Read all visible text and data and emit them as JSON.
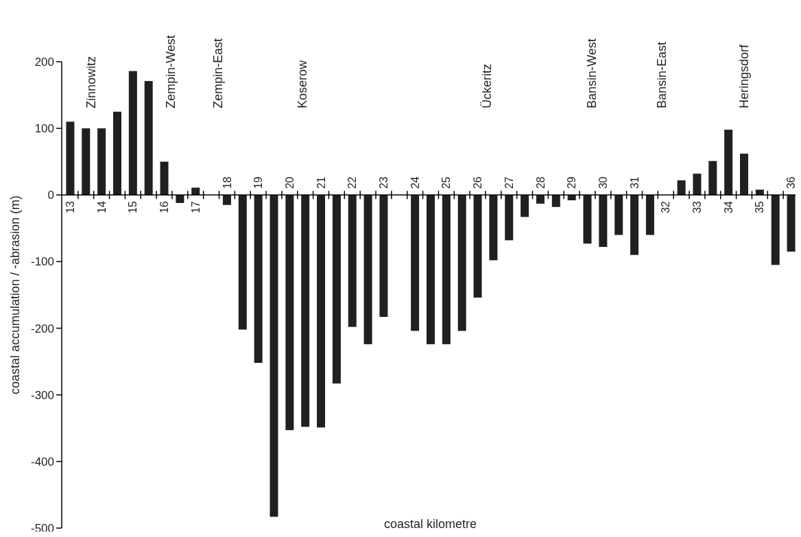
{
  "chart_data": {
    "type": "bar",
    "xlabel": "coastal kilometre",
    "ylabel": "coastal accumulation / -abrasion (m)",
    "categories": [
      "13",
      null,
      "14",
      null,
      "15",
      null,
      "16",
      null,
      "17",
      null,
      "18",
      null,
      "19",
      null,
      "20",
      null,
      "21",
      null,
      "22",
      null,
      "23",
      null,
      "24",
      null,
      "25",
      null,
      "26",
      null,
      "27",
      null,
      "28",
      null,
      "29",
      null,
      "30",
      null,
      "31",
      null,
      "32",
      null,
      "33",
      null,
      "34",
      null,
      "35",
      null,
      "36"
    ],
    "values": [
      110,
      100,
      100,
      125,
      186,
      171,
      50,
      -12,
      11,
      null,
      -15,
      -202,
      -252,
      -483,
      -353,
      -348,
      -349,
      -283,
      -198,
      -224,
      -183,
      null,
      -204,
      -224,
      -224,
      -204,
      -154,
      -98,
      -68,
      -33,
      -13,
      -18,
      -8,
      -73,
      -78,
      -60,
      -90,
      -60,
      null,
      22,
      32,
      51,
      98,
      62,
      8,
      -105,
      -85
    ],
    "color": "#231f20",
    "ylim": [
      -500,
      200
    ],
    "yticks": [
      -500,
      -400,
      -300,
      -200,
      -100,
      0,
      100,
      200
    ],
    "annotations": [
      "Zinnowitz",
      "Zempin-West",
      "Zempin-East",
      "Koserow",
      "Ückeritz",
      "Bansin-West",
      "Bansin-East",
      "Heringsdorf"
    ]
  }
}
